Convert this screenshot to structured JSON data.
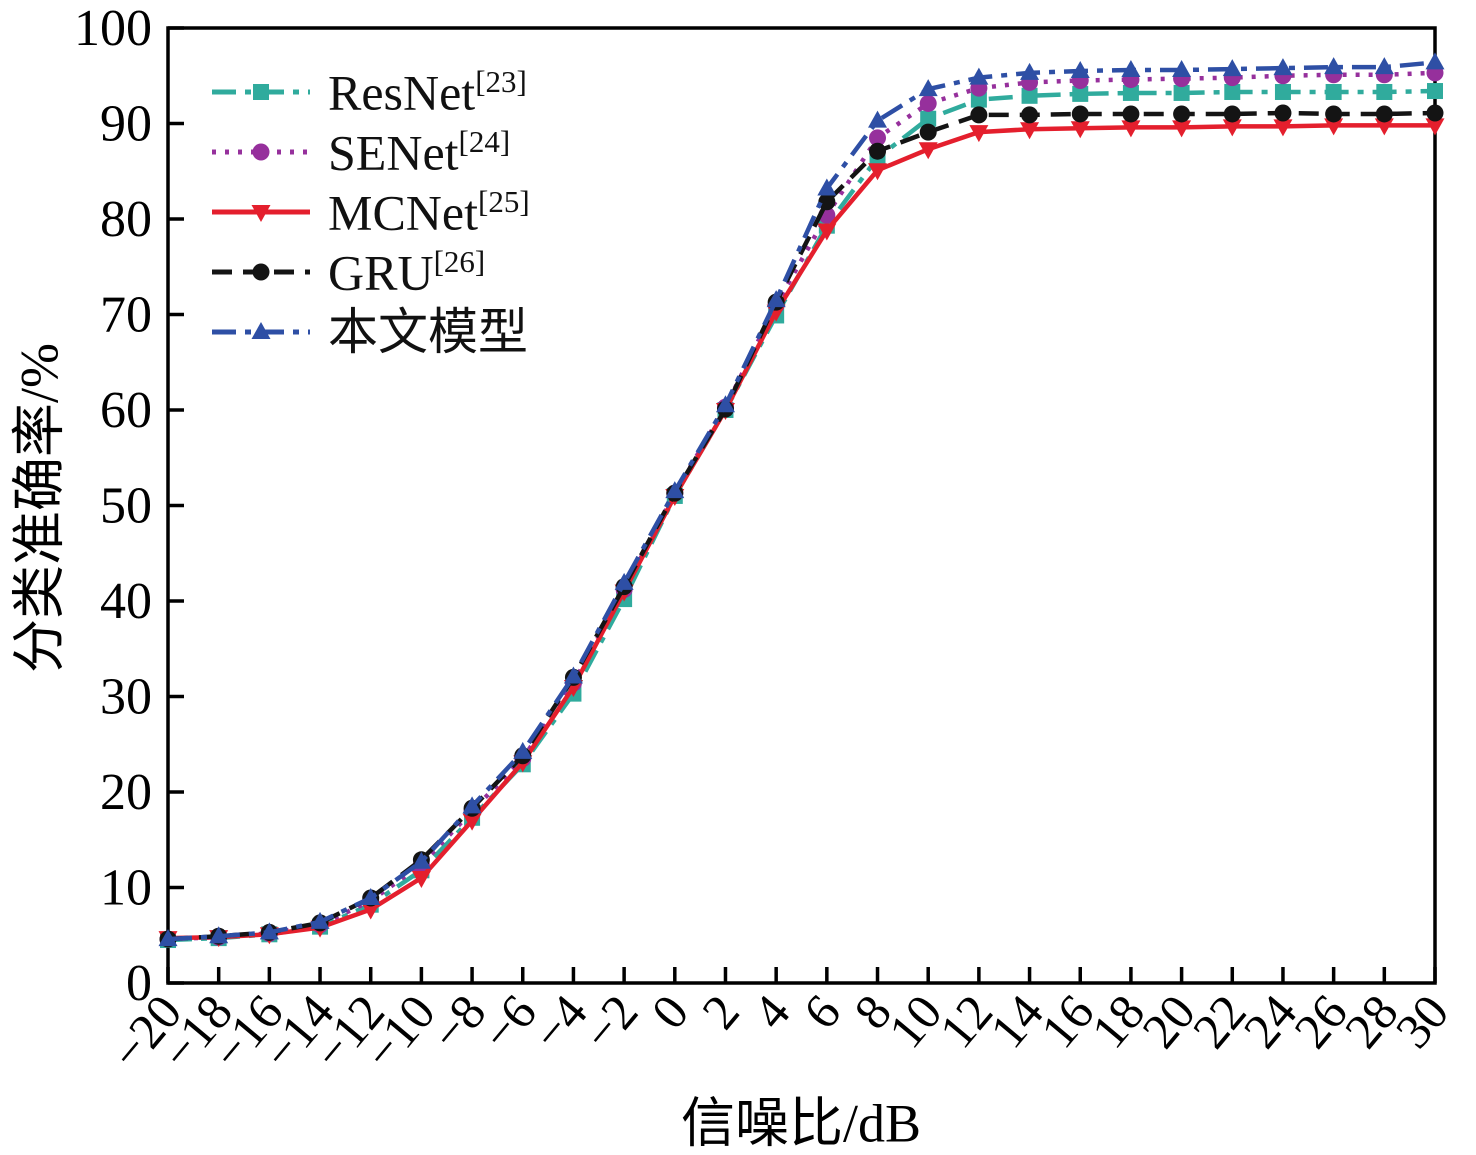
{
  "figure": {
    "background": "#ffffff"
  },
  "axes": {
    "x_title": "信噪比/dB",
    "y_title": "分类准确率/%",
    "x_tick_labels": [
      "−20",
      "−18",
      "−16",
      "−14",
      "−12",
      "−10",
      "−8",
      "−6",
      "−4",
      "−2",
      "0",
      "2",
      "4",
      "6",
      "8",
      "10",
      "12",
      "14",
      "16",
      "18",
      "20",
      "22",
      "24",
      "26",
      "28",
      "30"
    ],
    "y_tick_labels": [
      "0",
      "10",
      "20",
      "30",
      "40",
      "50",
      "60",
      "70",
      "80",
      "90",
      "100"
    ]
  },
  "legend": {
    "items": [
      {
        "label": "ResNet",
        "ref": "[23]"
      },
      {
        "label": "SENet",
        "ref": "[24]"
      },
      {
        "label": "MCNet",
        "ref": "[25]"
      },
      {
        "label": "GRU",
        "ref": "[26]"
      },
      {
        "label": "本文模型",
        "ref": ""
      }
    ]
  },
  "chart_data": {
    "type": "line",
    "title": "",
    "xlabel": "信噪比/dB",
    "ylabel": "分类准确率/%",
    "xlim": [
      -20,
      30
    ],
    "ylim": [
      0,
      100
    ],
    "grid": false,
    "legend_position": "top-left",
    "categories": [
      -20,
      -18,
      -16,
      -14,
      -12,
      -10,
      -8,
      -6,
      -4,
      -2,
      0,
      2,
      4,
      6,
      8,
      10,
      12,
      14,
      16,
      18,
      20,
      22,
      24,
      26,
      28,
      30
    ],
    "series": [
      {
        "name": "ResNet",
        "ref": "[23]",
        "color": "#30ab9d",
        "marker": "square",
        "line": "dashdot",
        "values": [
          4.5,
          4.7,
          5.1,
          5.9,
          8.2,
          11.8,
          17.3,
          22.9,
          30.3,
          40.2,
          51.0,
          60.0,
          69.9,
          79.3,
          86.4,
          90.5,
          92.5,
          92.9,
          93.1,
          93.2,
          93.2,
          93.3,
          93.3,
          93.3,
          93.3,
          93.4
        ]
      },
      {
        "name": "SENet",
        "ref": "[24]",
        "color": "#96309c",
        "marker": "circle",
        "line": "dotted",
        "values": [
          4.6,
          4.8,
          5.2,
          6.1,
          8.6,
          12.4,
          18.0,
          23.5,
          31.4,
          41.2,
          51.3,
          60.3,
          71.0,
          80.4,
          88.5,
          92.1,
          93.7,
          94.3,
          94.5,
          94.6,
          94.7,
          94.8,
          95.0,
          95.1,
          95.1,
          95.3
        ]
      },
      {
        "name": "MCNet",
        "ref": "[25]",
        "color": "#e41f2d",
        "marker": "triangle-down",
        "line": "solid",
        "values": [
          4.7,
          4.8,
          5.1,
          5.8,
          7.7,
          11.0,
          17.0,
          23.1,
          31.0,
          41.0,
          51.0,
          60.0,
          70.3,
          78.8,
          85.1,
          87.3,
          89.1,
          89.4,
          89.5,
          89.6,
          89.6,
          89.7,
          89.7,
          89.8,
          89.8,
          89.8
        ]
      },
      {
        "name": "GRU",
        "ref": "[26]",
        "color": "#141414",
        "marker": "circle",
        "line": "dashed",
        "values": [
          4.6,
          4.9,
          5.3,
          6.3,
          8.9,
          12.9,
          18.3,
          23.8,
          32.0,
          41.5,
          51.3,
          60.1,
          71.3,
          81.8,
          87.1,
          89.1,
          90.9,
          90.9,
          91.0,
          91.0,
          91.0,
          91.0,
          91.1,
          91.0,
          91.0,
          91.1
        ]
      },
      {
        "name": "本文模型",
        "ref": "",
        "color": "#2e4fa5",
        "marker": "triangle-up",
        "line": "dashdot",
        "values": [
          4.6,
          4.9,
          5.3,
          6.4,
          8.9,
          12.7,
          18.5,
          24.2,
          32.1,
          41.9,
          51.5,
          60.5,
          71.5,
          83.2,
          90.3,
          93.6,
          94.8,
          95.3,
          95.5,
          95.6,
          95.6,
          95.7,
          95.8,
          95.9,
          95.9,
          96.4
        ]
      }
    ]
  }
}
